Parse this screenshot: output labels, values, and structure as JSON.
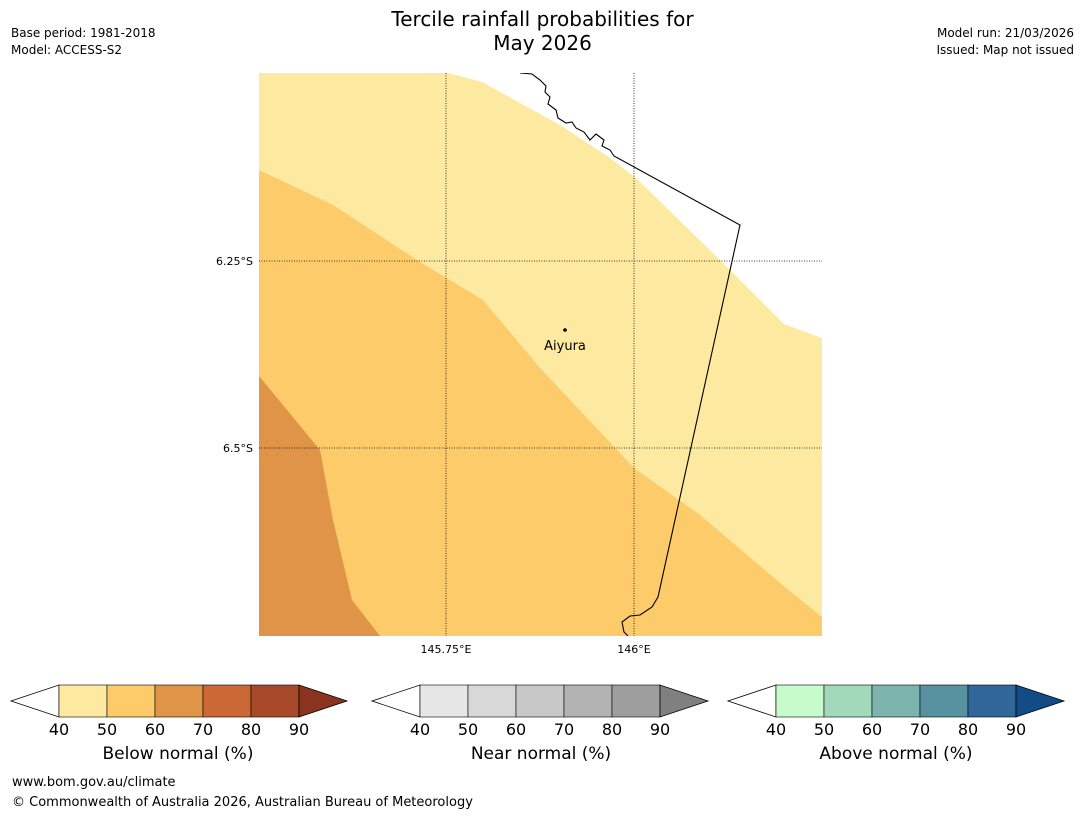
{
  "header": {
    "title_line1": "Tercile rainfall probabilities for",
    "title_line2": "May 2026",
    "base_period": "Base period: 1981-2018",
    "model": "Model: ACCESS-S2",
    "model_run": "Model run: 21/03/2026",
    "issued": "Issued: Map not issued"
  },
  "map": {
    "lat_labels": [
      "6.25°S",
      "6.5°S"
    ],
    "lon_labels": [
      "145.75°E",
      "146°E"
    ],
    "place": {
      "name": "Aiyura"
    },
    "colors": {
      "below_40_50": "#fee9a1",
      "below_50_60": "#fdcb69",
      "below_60_70": "#e09447"
    }
  },
  "legends": [
    {
      "title": "Below normal (%)",
      "ticks": [
        "40",
        "50",
        "60",
        "70",
        "80",
        "90"
      ],
      "colors": [
        "#ffffff",
        "#fee9a1",
        "#fdcb69",
        "#e09447",
        "#cc6736",
        "#a84a2a",
        "#8a3420"
      ]
    },
    {
      "title": "Near normal (%)",
      "ticks": [
        "40",
        "50",
        "60",
        "70",
        "80",
        "90"
      ],
      "colors": [
        "#ffffff",
        "#e6e6e6",
        "#d8d8d8",
        "#c8c8c8",
        "#b3b3b3",
        "#9e9e9e",
        "#808080"
      ]
    },
    {
      "title": "Above normal (%)",
      "ticks": [
        "40",
        "50",
        "60",
        "70",
        "80",
        "90"
      ],
      "colors": [
        "#ffffff",
        "#c8fbcc",
        "#a3d9bb",
        "#7db5ae",
        "#5891a0",
        "#306699",
        "#134b86"
      ]
    }
  ],
  "footer": {
    "url": "www.bom.gov.au/climate",
    "copyright": "© Commonwealth of Australia 2026, Australian Bureau of Meteorology"
  }
}
